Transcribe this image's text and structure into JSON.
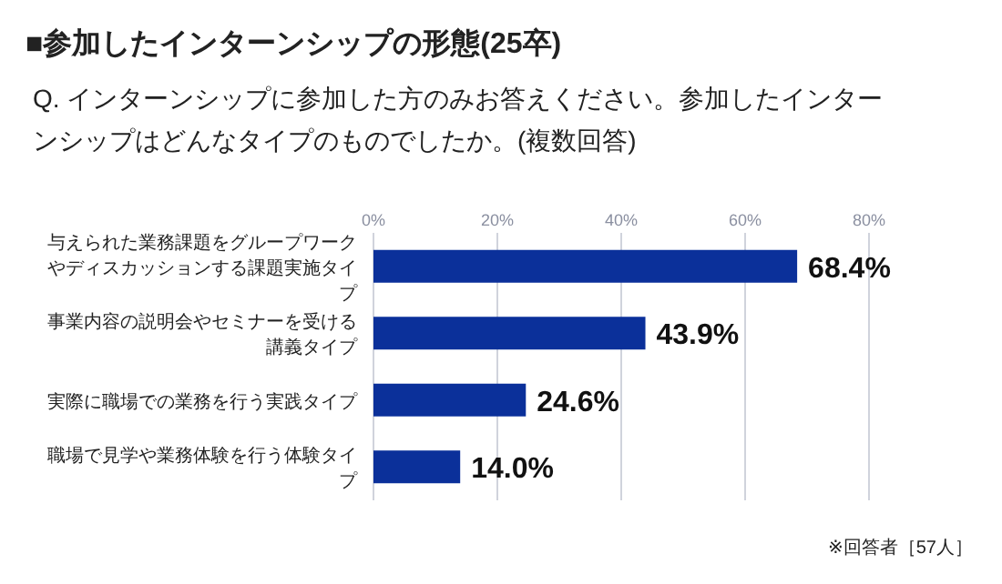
{
  "chart_data": {
    "type": "bar",
    "orientation": "horizontal",
    "title": "■参加したインターンシップの形態(25卒)",
    "subtitle": "Q. インターンシップに参加した方のみお答えください。参加したインターンシップはどんなタイプのものでしたか。(複数回答)",
    "categories": [
      "与えられた業務課題をグループワークやディスカッションする課題実施タイプ",
      "事業内容の説明会やセミナーを受ける講義タイプ",
      "実際に職場での業務を行う実践タイプ",
      "職場で見学や業務体験を行う体験タイプ"
    ],
    "values": [
      68.4,
      43.9,
      24.6,
      14.0
    ],
    "value_labels": [
      "68.4%",
      "43.9%",
      "24.6%",
      "14.0%"
    ],
    "color": "#0b309a",
    "xlim": [
      0,
      80
    ],
    "xticks": [
      {
        "value": 0,
        "label": "0%"
      },
      {
        "value": 20,
        "label": "20%"
      },
      {
        "value": 40,
        "label": "40%"
      },
      {
        "value": 60,
        "label": "60%"
      },
      {
        "value": 80,
        "label": "80%"
      }
    ],
    "grid": "x",
    "annotations": [
      "※回答者［57人］"
    ]
  }
}
